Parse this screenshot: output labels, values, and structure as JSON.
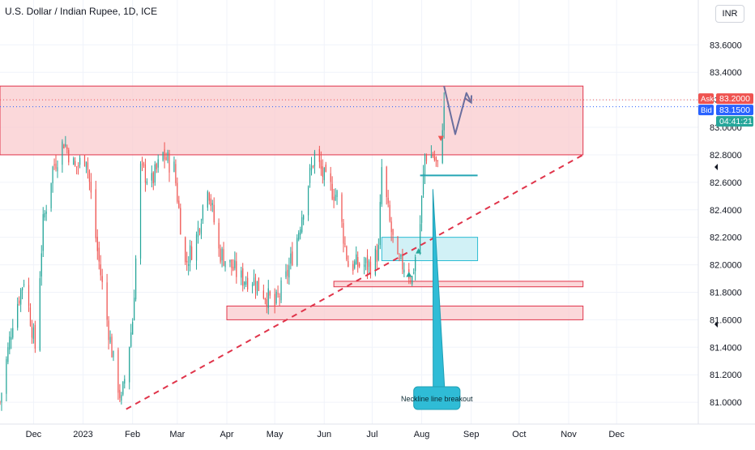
{
  "header": {
    "title": "U.S. Dollar / Indian Rupee, 1D, ICE",
    "currency": "INR"
  },
  "quote": {
    "ask_label": "Ask",
    "ask_value": "83.2000",
    "bid_label": "Bid",
    "bid_value": "83.1500",
    "countdown": "04:41:21"
  },
  "annotation_text": "Neckline line breakout",
  "colors": {
    "up": "#26a69a",
    "down": "#ef5350",
    "zone_red_fill": "#f9c7cb",
    "zone_red_stroke": "#e0344a",
    "zone_blue_fill": "#c9eef5",
    "zone_blue_stroke": "#2bbcd4",
    "trend": "#e0344a",
    "ask": "#ef5350",
    "bid": "#2962ff",
    "countdown": "#26a69a",
    "arrow_path": "#6b6f9e"
  },
  "chart_data": {
    "type": "candlestick",
    "title": "U.S. Dollar / Indian Rupee, 1D, ICE",
    "ylim": [
      80.93,
      83.82
    ],
    "y_ticks": [
      "83.6000",
      "83.4000",
      "83.2000",
      "83.0000",
      "82.8000",
      "82.6000",
      "82.4000",
      "82.2000",
      "82.0000",
      "81.8000",
      "81.6000",
      "81.4000",
      "81.2000",
      "81.0000"
    ],
    "x_ticks": [
      {
        "label": "Dec",
        "date": "2022-12-01"
      },
      {
        "label": "2023",
        "date": "2023-01-01"
      },
      {
        "label": "Feb",
        "date": "2023-02-01"
      },
      {
        "label": "Mar",
        "date": "2023-03-01"
      },
      {
        "label": "Apr",
        "date": "2023-04-01"
      },
      {
        "label": "May",
        "date": "2023-05-01"
      },
      {
        "label": "Jun",
        "date": "2023-06-01"
      },
      {
        "label": "Jul",
        "date": "2023-07-01"
      },
      {
        "label": "Aug",
        "date": "2023-08-01"
      },
      {
        "label": "Sep",
        "date": "2023-09-01"
      },
      {
        "label": "Oct",
        "date": "2023-10-01"
      },
      {
        "label": "Nov",
        "date": "2023-11-01"
      },
      {
        "label": "Dec",
        "date": "2023-12-01"
      }
    ],
    "xlim": [
      "2022-11-10",
      "2024-01-10"
    ],
    "close_path": [
      [
        "2022-11-10",
        81.0
      ],
      [
        "2022-11-18",
        81.6
      ],
      [
        "2022-11-25",
        81.9
      ],
      [
        "2022-12-02",
        81.4
      ],
      [
        "2022-12-07",
        82.3
      ],
      [
        "2022-12-13",
        82.7
      ],
      [
        "2022-12-20",
        82.9
      ],
      [
        "2022-12-27",
        82.7
      ],
      [
        "2023-01-03",
        82.8
      ],
      [
        "2023-01-10",
        82.1
      ],
      [
        "2023-01-16",
        81.6
      ],
      [
        "2023-01-20",
        81.3
      ],
      [
        "2023-01-25",
        81.0
      ],
      [
        "2023-02-01",
        81.6
      ],
      [
        "2023-02-06",
        82.7
      ],
      [
        "2023-02-13",
        82.6
      ],
      [
        "2023-02-20",
        82.8
      ],
      [
        "2023-02-27",
        82.7
      ],
      [
        "2023-03-06",
        82.0
      ],
      [
        "2023-03-13",
        82.2
      ],
      [
        "2023-03-20",
        82.6
      ],
      [
        "2023-03-27",
        82.1
      ],
      [
        "2023-04-03",
        82.0
      ],
      [
        "2023-04-10",
        81.9
      ],
      [
        "2023-04-17",
        81.9
      ],
      [
        "2023-04-24",
        81.8
      ],
      [
        "2023-05-01",
        81.7
      ],
      [
        "2023-05-08",
        81.9
      ],
      [
        "2023-05-15",
        82.2
      ],
      [
        "2023-05-22",
        82.6
      ],
      [
        "2023-05-26",
        82.8
      ],
      [
        "2023-06-02",
        82.6
      ],
      [
        "2023-06-09",
        82.5
      ],
      [
        "2023-06-16",
        82.0
      ],
      [
        "2023-06-23",
        82.0
      ],
      [
        "2023-06-30",
        82.0
      ],
      [
        "2023-07-05",
        82.1
      ],
      [
        "2023-07-07",
        82.7
      ],
      [
        "2023-07-12",
        82.3
      ],
      [
        "2023-07-17",
        82.0
      ],
      [
        "2023-07-21",
        82.0
      ],
      [
        "2023-07-26",
        81.9
      ],
      [
        "2023-07-31",
        82.3
      ],
      [
        "2023-08-03",
        82.8
      ],
      [
        "2023-08-08",
        82.8
      ],
      [
        "2023-08-11",
        82.7
      ],
      [
        "2023-08-15",
        83.15
      ]
    ],
    "zones": [
      {
        "y_top": 83.3,
        "y_bottom": 82.8,
        "date_start": "2022-11-10",
        "date_end": "2023-11-10",
        "color": "red"
      },
      {
        "y_top": 81.88,
        "y_bottom": 81.84,
        "date_start": "2023-06-07",
        "date_end": "2023-11-10",
        "color": "red"
      },
      {
        "y_top": 81.7,
        "y_bottom": 81.6,
        "date_start": "2023-04-01",
        "date_end": "2023-11-10",
        "color": "red"
      },
      {
        "y_top": 82.2,
        "y_bottom": 82.03,
        "date_start": "2023-07-07",
        "date_end": "2023-09-05",
        "color": "blue"
      }
    ],
    "trendline": {
      "start": [
        "2023-01-28",
        80.95
      ],
      "end": [
        "2023-11-10",
        82.8
      ],
      "style": "dashed"
    },
    "neckline": {
      "start": [
        "2023-07-31",
        82.65
      ],
      "end": [
        "2023-09-05",
        82.65
      ]
    },
    "projected_path": [
      [
        "2023-08-15",
        83.3
      ],
      [
        "2023-08-22",
        82.95
      ],
      [
        "2023-08-29",
        83.25
      ],
      [
        "2023-09-01",
        83.18
      ]
    ],
    "markers": [
      {
        "date": "2023-07-24",
        "y": 81.93,
        "kind": "up"
      },
      {
        "date": "2023-07-30",
        "y": 82.1,
        "kind": "up"
      },
      {
        "date": "2023-08-13",
        "y": 82.92,
        "kind": "down"
      }
    ],
    "callout": {
      "text": "Neckline line breakout",
      "tip": [
        "2023-08-08",
        82.55
      ],
      "box_date_start": "2023-07-27",
      "box_date_end": "2023-08-25",
      "box_y": 81.03
    },
    "price_lines": {
      "ask": 83.2,
      "bid": 83.15
    }
  }
}
